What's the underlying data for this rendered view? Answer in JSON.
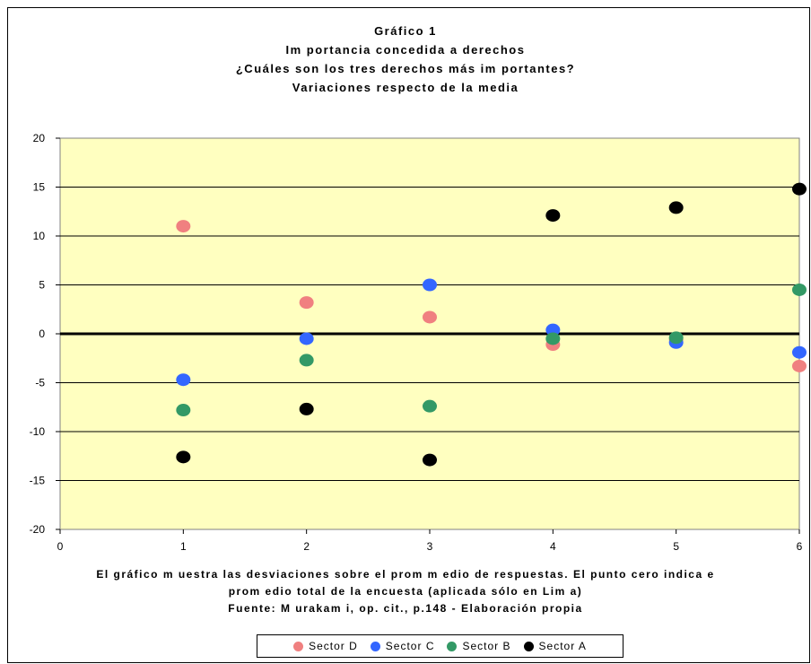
{
  "chart_data": {
    "type": "scatter",
    "title_lines": [
      "Gráfico 1",
      "Im portancia concedida a derechos",
      "¿Cuáles son los tres derechos más im portantes?",
      "Variaciones respecto de la media"
    ],
    "xlim": [
      0,
      6
    ],
    "ylim": [
      -20,
      20
    ],
    "x_ticks": [
      0,
      1,
      2,
      3,
      4,
      5,
      6
    ],
    "y_ticks": [
      20,
      15,
      10,
      5,
      0,
      -5,
      -10,
      -15,
      -20
    ],
    "x_tick_labels": [
      "0",
      "1",
      "2",
      "3",
      "4",
      "5",
      "6"
    ],
    "y_tick_labels": [
      "20",
      "15",
      "10",
      "5",
      "0",
      "-5",
      "-10",
      "-15",
      "-20"
    ],
    "grid": "horizontal",
    "plot_background": "#ffffc0",
    "zero_line": true,
    "legend_position": "bottom",
    "series": [
      {
        "name": "Sector D",
        "color": "#f08080",
        "points": [
          [
            1,
            11
          ],
          [
            2,
            3.2
          ],
          [
            3,
            1.7
          ],
          [
            4,
            -1.1
          ],
          [
            5,
            -0.6
          ],
          [
            6,
            -3.3
          ]
        ]
      },
      {
        "name": "Sector C",
        "color": "#3366ff",
        "points": [
          [
            1,
            -4.7
          ],
          [
            2,
            -0.5
          ],
          [
            3,
            5
          ],
          [
            4,
            0.4
          ],
          [
            5,
            -0.9
          ],
          [
            6,
            -1.9
          ]
        ]
      },
      {
        "name": "Sector B",
        "color": "#339966",
        "points": [
          [
            1,
            -7.8
          ],
          [
            2,
            -2.7
          ],
          [
            3,
            -7.4
          ],
          [
            4,
            -0.5
          ],
          [
            5,
            -0.4
          ],
          [
            6,
            4.5
          ]
        ]
      },
      {
        "name": "Sector A",
        "color": "#000000",
        "points": [
          [
            1,
            -12.6
          ],
          [
            2,
            -7.7
          ],
          [
            3,
            -12.9
          ],
          [
            4,
            12.1
          ],
          [
            5,
            12.9
          ],
          [
            6,
            14.8
          ]
        ]
      }
    ]
  },
  "footnote": {
    "line1": "El gráfico m uestra las desviaciones sobre el prom m edio de respuestas. El punto cero indica e",
    "line2": "prom edio total de la encuesta (aplicada sólo en Lim a)",
    "line3": "Fuente: M urakam i, op. cit., p.148 -  Elaboración propia"
  }
}
